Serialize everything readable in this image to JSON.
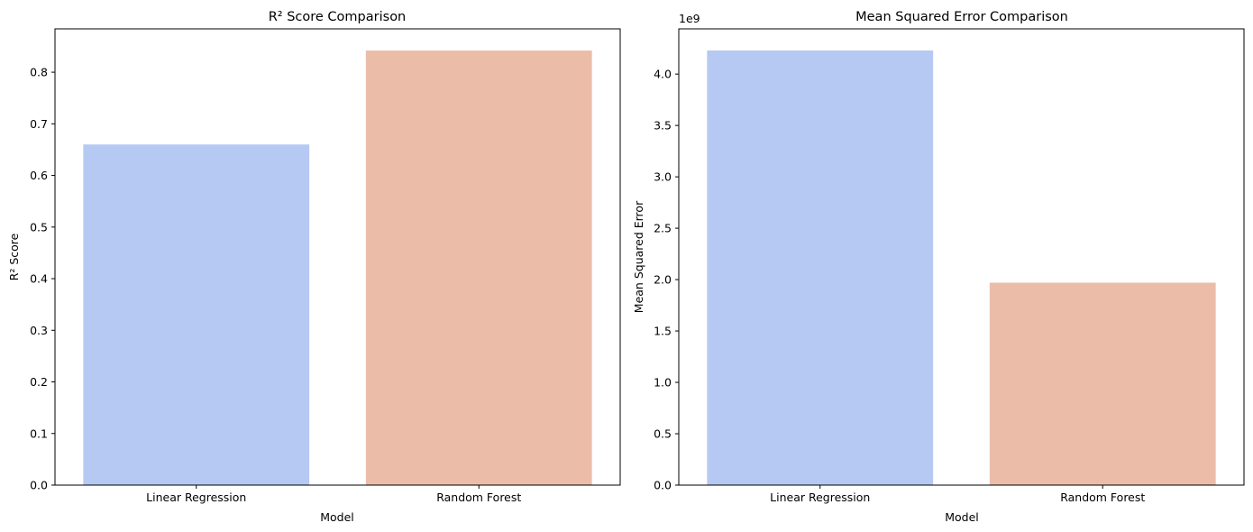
{
  "chart_data": [
    {
      "type": "bar",
      "title": "R² Score Comparison",
      "xlabel": "Model",
      "ylabel": "R² Score",
      "categories": [
        "Linear Regression",
        "Random Forest"
      ],
      "values": [
        0.66,
        0.842
      ],
      "ylim": [
        0,
        0.884
      ],
      "yticks": [
        0.0,
        0.1,
        0.2,
        0.3,
        0.4,
        0.5,
        0.6,
        0.7,
        0.8
      ],
      "ytick_labels": [
        "0.0",
        "0.1",
        "0.2",
        "0.3",
        "0.4",
        "0.5",
        "0.6",
        "0.7",
        "0.8"
      ],
      "offset_text": "",
      "colors": [
        "#b5c9f2",
        "#ebbda8"
      ],
      "grid": false,
      "legend": "none"
    },
    {
      "type": "bar",
      "title": "Mean Squared Error Comparison",
      "xlabel": "Model",
      "ylabel": "Mean Squared Error",
      "categories": [
        "Linear Regression",
        "Random Forest"
      ],
      "values": [
        4230000000.0,
        1970000000.0
      ],
      "ylim": [
        0,
        4440000000.0
      ],
      "yticks": [
        0,
        500000000.0,
        1000000000.0,
        1500000000.0,
        2000000000.0,
        2500000000.0,
        3000000000.0,
        3500000000.0,
        4000000000.0
      ],
      "ytick_labels": [
        "0.0",
        "0.5",
        "1.0",
        "1.5",
        "2.0",
        "2.5",
        "3.0",
        "3.5",
        "4.0"
      ],
      "offset_text": "1e9",
      "colors": [
        "#b5c9f2",
        "#ebbda8"
      ],
      "grid": false,
      "legend": "none"
    }
  ]
}
